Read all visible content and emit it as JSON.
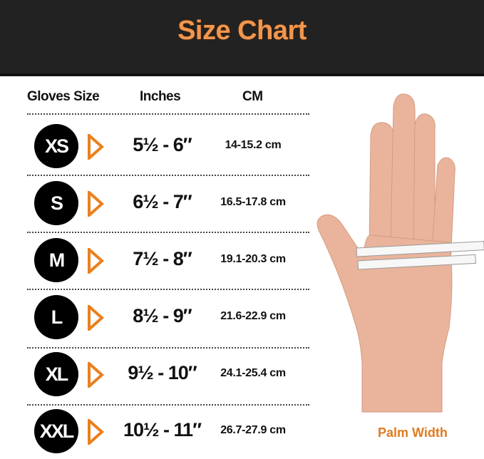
{
  "header": {
    "title": "Size Chart"
  },
  "columns": [
    "Gloves Size",
    "Inches",
    "CM"
  ],
  "rows": [
    {
      "size": "XS",
      "inches": "5½ - 6″",
      "cm": "14-15.2 cm"
    },
    {
      "size": "S",
      "inches": "6½ - 7″",
      "cm": "16.5-17.8 cm"
    },
    {
      "size": "M",
      "inches": "7½ - 8″",
      "cm": "19.1-20.3 cm"
    },
    {
      "size": "L",
      "inches": "8½ - 9″",
      "cm": "21.6-22.9 cm"
    },
    {
      "size": "XL",
      "inches": "9½ - 10″",
      "cm": "24.1-25.4 cm"
    },
    {
      "size": "XXL",
      "inches": "10½ - 11″",
      "cm": "26.7-27.9 cm"
    }
  ],
  "image": {
    "caption": "Palm Width"
  },
  "colors": {
    "accent": "#f2964e",
    "header_bg": "#222222",
    "arrow": "#e8801e",
    "badge": "#000000"
  }
}
